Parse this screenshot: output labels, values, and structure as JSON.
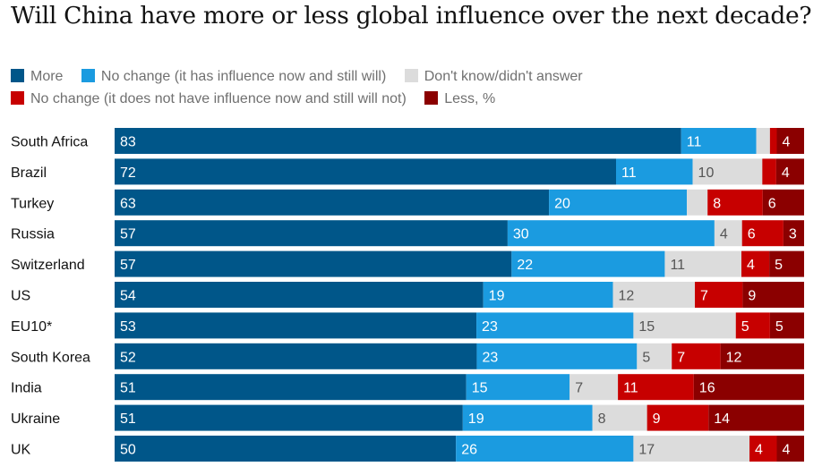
{
  "title": "Will China have more or less global influence over the next decade?",
  "legend": [
    {
      "label": "More",
      "color": "#005689"
    },
    {
      "label": "No change (it has influence now and still will)",
      "color": "#1b9be0"
    },
    {
      "label": "Don't know/didn't answer",
      "color": "#dcdcdc"
    },
    {
      "label": "No change (it does not have influence now and still will not)",
      "color": "#c70000"
    },
    {
      "label": "Less, %",
      "color": "#8b0000"
    }
  ],
  "chart_data": {
    "type": "bar",
    "orientation": "horizontal",
    "stacked": true,
    "unit": "%",
    "categories": [
      "South Africa",
      "Brazil",
      "Turkey",
      "Russia",
      "Switzerland",
      "US",
      "EU10*",
      "South Korea",
      "India",
      "Ukraine",
      "UK"
    ],
    "series": [
      {
        "name": "More",
        "color": "#005689",
        "label_color": "#ffffff",
        "values": [
          83,
          72,
          63,
          57,
          57,
          54,
          53,
          52,
          51,
          51,
          50
        ],
        "labels": [
          "83",
          "72",
          "63",
          "57",
          "57",
          "54",
          "53",
          "52",
          "51",
          "51",
          "50"
        ]
      },
      {
        "name": "No change (it has influence now and still will)",
        "color": "#1b9be0",
        "label_color": "#ffffff",
        "values": [
          11,
          11,
          20,
          30,
          22,
          19,
          23,
          23,
          15,
          19,
          26
        ],
        "labels": [
          "11",
          "11",
          "20",
          "30",
          "22",
          "19",
          "23",
          "23",
          "15",
          "19",
          "26"
        ]
      },
      {
        "name": "Don't know/didn't answer",
        "color": "#dcdcdc",
        "label_color": "#555555",
        "values": [
          2,
          10,
          3,
          4,
          11,
          12,
          15,
          5,
          7,
          8,
          17
        ],
        "labels": [
          "",
          "10",
          "",
          "4",
          "11",
          "12",
          "15",
          "5",
          "7",
          "8",
          "17"
        ]
      },
      {
        "name": "No change (it does not have influence now and still will not)",
        "color": "#c70000",
        "label_color": "#ffffff",
        "values": [
          1,
          2,
          8,
          6,
          4,
          7,
          5,
          7,
          11,
          9,
          4
        ],
        "labels": [
          "",
          "",
          "8",
          "6",
          "4",
          "7",
          "5",
          "7",
          "11",
          "9",
          "4"
        ]
      },
      {
        "name": "Less",
        "color": "#8b0000",
        "label_color": "#ffffff",
        "values": [
          4,
          4,
          6,
          3,
          5,
          9,
          5,
          12,
          16,
          14,
          4
        ],
        "labels": [
          "4",
          "4",
          "6",
          "3",
          "5",
          "9",
          "5",
          "12",
          "16",
          "14",
          "4"
        ]
      }
    ],
    "xlim": [
      0,
      100
    ],
    "grid": false
  }
}
